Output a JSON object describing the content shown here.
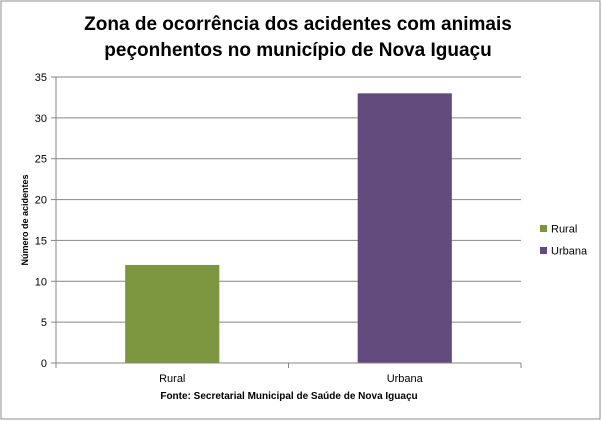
{
  "chart_data": {
    "type": "bar",
    "title_lines": [
      "Zona de ocorrência dos acidentes com animais",
      "peçonhentos no município de Nova Iguaçu"
    ],
    "xlabel": "Fonte: Secretarial  Municipal  de Saúde de Nova Iguaçu",
    "ylabel": "Número de acidentes",
    "categories": [
      "Rural",
      "Urbana"
    ],
    "values": [
      12,
      33
    ],
    "colors": [
      "#7B963E",
      "#634A7D"
    ],
    "ylim": [
      0,
      35
    ],
    "yticks": [
      0,
      5,
      10,
      15,
      20,
      25,
      30,
      35
    ],
    "grid": true,
    "legend": {
      "position": "right",
      "entries": [
        {
          "label": "Rural",
          "color": "#7B963E"
        },
        {
          "label": "Urbana",
          "color": "#634A7D"
        }
      ]
    }
  }
}
